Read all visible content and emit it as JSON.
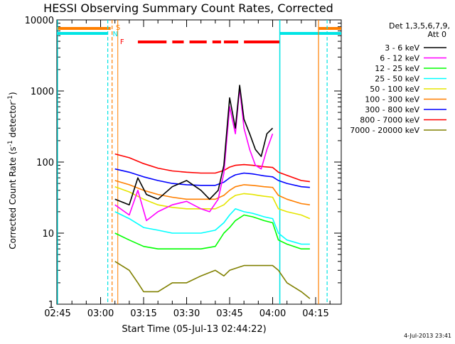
{
  "chart_data": {
    "type": "line",
    "title": "HESSI Observing Summary Count Rates, Corrected",
    "xlabel": "Start Time (05-Jul-13 02:44:22)",
    "ylabel": "Corrected Count Rate (s⁻¹ detector⁻¹)",
    "ylabel_parts": {
      "main": "Corrected Count Rate (s",
      "sup1": "-1",
      "mid": " detector",
      "sup2": "-1",
      "end": ")"
    },
    "footer_date": "4-Jul-2013 23:41",
    "yscale": "log",
    "ylim": [
      1,
      10000
    ],
    "xlim_minutes": [
      -1.37,
      79
    ],
    "x_ticks": [
      {
        "label": "02:45",
        "m": 0
      },
      {
        "label": "03:00",
        "m": 15
      },
      {
        "label": "03:15",
        "m": 30
      },
      {
        "label": "03:30",
        "m": 45
      },
      {
        "label": "03:45",
        "m": 60
      },
      {
        "label": "04:00",
        "m": 75
      },
      {
        "label": "04:15",
        "m": 90
      }
    ],
    "y_ticks": [
      {
        "label": "1",
        "v": 1
      },
      {
        "label": "10",
        "v": 10
      },
      {
        "label": "100",
        "v": 100
      },
      {
        "label": "1000",
        "v": 1000
      },
      {
        "label": "10000",
        "v": 10000
      }
    ],
    "legend": {
      "header1": "Det 1,3,5,6,7,9,",
      "header2": "Att 0",
      "placement": "top-right outside plot"
    },
    "flags": {
      "S": {
        "label": "S",
        "color": "#ff7f00"
      },
      "N": {
        "label": "N",
        "color": "#00e5e5"
      },
      "F": {
        "label": "F",
        "color": "#ff0000"
      }
    },
    "series": [
      {
        "name": "3 - 6 keV",
        "color": "#000000",
        "x": [
          20,
          25,
          28,
          31,
          35,
          40,
          45,
          50,
          53,
          56,
          58,
          60,
          62,
          63.5,
          65,
          67,
          69,
          71,
          73,
          75,
          77
        ],
        "y": [
          30,
          25,
          60,
          35,
          30,
          45,
          55,
          40,
          30,
          40,
          90,
          800,
          300,
          1200,
          400,
          250,
          150,
          120,
          250,
          300,
          null
        ]
      },
      {
        "name": "6 - 12 keV",
        "color": "#ff00ff",
        "x": [
          20,
          25,
          28,
          31,
          35,
          40,
          45,
          50,
          53,
          56,
          58,
          60,
          62,
          63.5,
          65,
          67,
          69,
          71,
          73,
          75,
          77
        ],
        "y": [
          25,
          18,
          40,
          15,
          20,
          25,
          28,
          22,
          20,
          30,
          70,
          600,
          250,
          1100,
          300,
          150,
          90,
          80,
          150,
          250,
          null
        ]
      },
      {
        "name": "12 - 25 keV",
        "color": "#00ff00",
        "x": [
          20,
          25,
          30,
          35,
          40,
          45,
          50,
          55,
          58,
          60,
          62,
          65,
          68,
          70,
          72,
          75,
          77,
          80,
          85,
          88
        ],
        "y": [
          10,
          8,
          6.5,
          6,
          6,
          6,
          6,
          6.5,
          10,
          12,
          15,
          18,
          17,
          16,
          15,
          14,
          8,
          7,
          6,
          6
        ]
      },
      {
        "name": "25 - 50 keV",
        "color": "#00ffff",
        "x": [
          20,
          25,
          30,
          35,
          40,
          45,
          50,
          55,
          58,
          60,
          62,
          65,
          68,
          70,
          72,
          75,
          77,
          80,
          85,
          88
        ],
        "y": [
          20,
          16,
          12,
          11,
          10,
          10,
          10,
          11,
          14,
          18,
          22,
          20,
          19,
          18,
          17,
          16,
          10,
          8,
          7,
          7
        ]
      },
      {
        "name": "50 - 100 keV",
        "color": "#e5e500",
        "x": [
          20,
          25,
          30,
          35,
          40,
          45,
          50,
          55,
          58,
          60,
          62,
          65,
          68,
          70,
          72,
          75,
          77,
          80,
          85,
          88
        ],
        "y": [
          45,
          38,
          30,
          25,
          23,
          22,
          22,
          22,
          25,
          30,
          34,
          36,
          35,
          34,
          33,
          32,
          22,
          20,
          18,
          16
        ]
      },
      {
        "name": "100 - 300 keV",
        "color": "#ff7f00",
        "x": [
          20,
          25,
          30,
          35,
          40,
          45,
          50,
          55,
          58,
          60,
          62,
          65,
          68,
          70,
          72,
          75,
          77,
          80,
          85,
          88
        ],
        "y": [
          55,
          48,
          40,
          35,
          32,
          30,
          30,
          30,
          34,
          40,
          45,
          48,
          47,
          46,
          45,
          44,
          34,
          30,
          26,
          25
        ]
      },
      {
        "name": "300 - 800 keV",
        "color": "#0000ff",
        "x": [
          20,
          25,
          30,
          35,
          40,
          45,
          50,
          55,
          58,
          60,
          62,
          65,
          68,
          70,
          72,
          75,
          77,
          80,
          85,
          88
        ],
        "y": [
          80,
          72,
          62,
          55,
          50,
          48,
          47,
          47,
          52,
          60,
          66,
          70,
          68,
          66,
          64,
          62,
          55,
          50,
          45,
          44
        ]
      },
      {
        "name": "800 - 7000 keV",
        "color": "#ff0000",
        "x": [
          20,
          25,
          30,
          35,
          40,
          45,
          50,
          55,
          58,
          60,
          62,
          65,
          68,
          70,
          72,
          75,
          77,
          80,
          85,
          88
        ],
        "y": [
          130,
          115,
          95,
          82,
          75,
          72,
          70,
          70,
          76,
          85,
          90,
          92,
          90,
          88,
          86,
          84,
          72,
          65,
          55,
          53
        ]
      },
      {
        "name": "7000 - 20000 keV",
        "color": "#808000",
        "x": [
          20,
          25,
          28,
          30,
          35,
          40,
          45,
          50,
          55,
          58,
          60,
          65,
          70,
          75,
          77,
          80,
          85,
          88
        ],
        "y": [
          4,
          3,
          2,
          1.5,
          1.5,
          2,
          2,
          2.5,
          3,
          2.5,
          3,
          3.5,
          3.5,
          3.5,
          3,
          2,
          1.5,
          1.2
        ]
      }
    ]
  }
}
